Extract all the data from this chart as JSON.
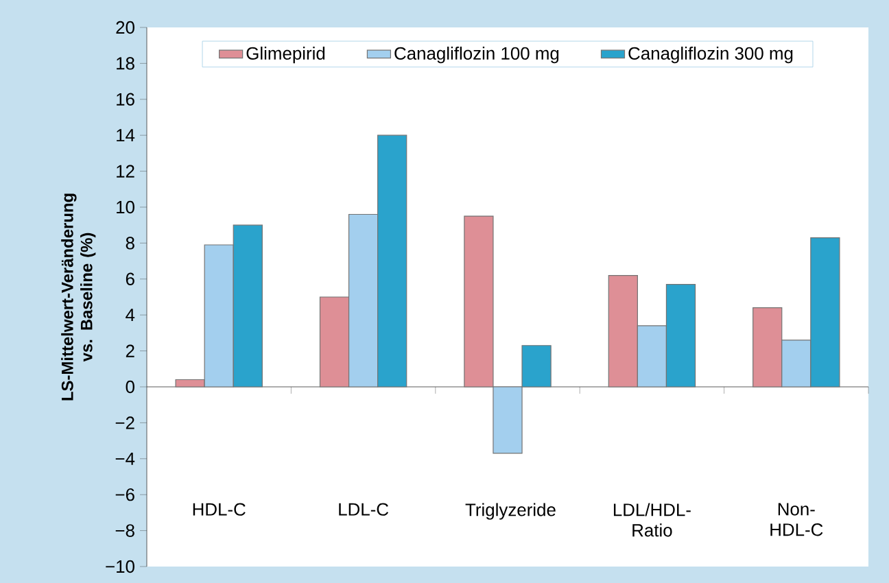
{
  "chart_data": {
    "type": "bar",
    "ylabel": "LS-Mittelwert-Veränderung vs. Baseline (%)",
    "categories": [
      "HDL-C",
      "LDL-C",
      "Triglyzeride",
      "LDL/HDL-Ratio",
      "Non-HDL-C"
    ],
    "series": [
      {
        "name": "Glimepirid",
        "color": "#de8f96",
        "values": [
          0.4,
          5.0,
          9.5,
          6.2,
          4.4
        ]
      },
      {
        "name": "Canagliflozin 100 mg",
        "color": "#a3cfee",
        "values": [
          7.9,
          9.6,
          -3.7,
          3.4,
          2.6
        ]
      },
      {
        "name": "Canagliflozin 300 mg",
        "color": "#2aa3cc",
        "values": [
          9.0,
          14.0,
          2.3,
          5.7,
          8.3
        ]
      }
    ],
    "ylim": [
      -10,
      20
    ],
    "yticks": [
      {
        "value": -10,
        "label": "−10"
      },
      {
        "value": -8,
        "label": "−8"
      },
      {
        "value": -6,
        "label": "−6"
      },
      {
        "value": -4,
        "label": "−4"
      },
      {
        "value": -2,
        "label": "−2"
      },
      0,
      2,
      4,
      6,
      8,
      10,
      12,
      14,
      16,
      18,
      20
    ],
    "legend": "top"
  }
}
